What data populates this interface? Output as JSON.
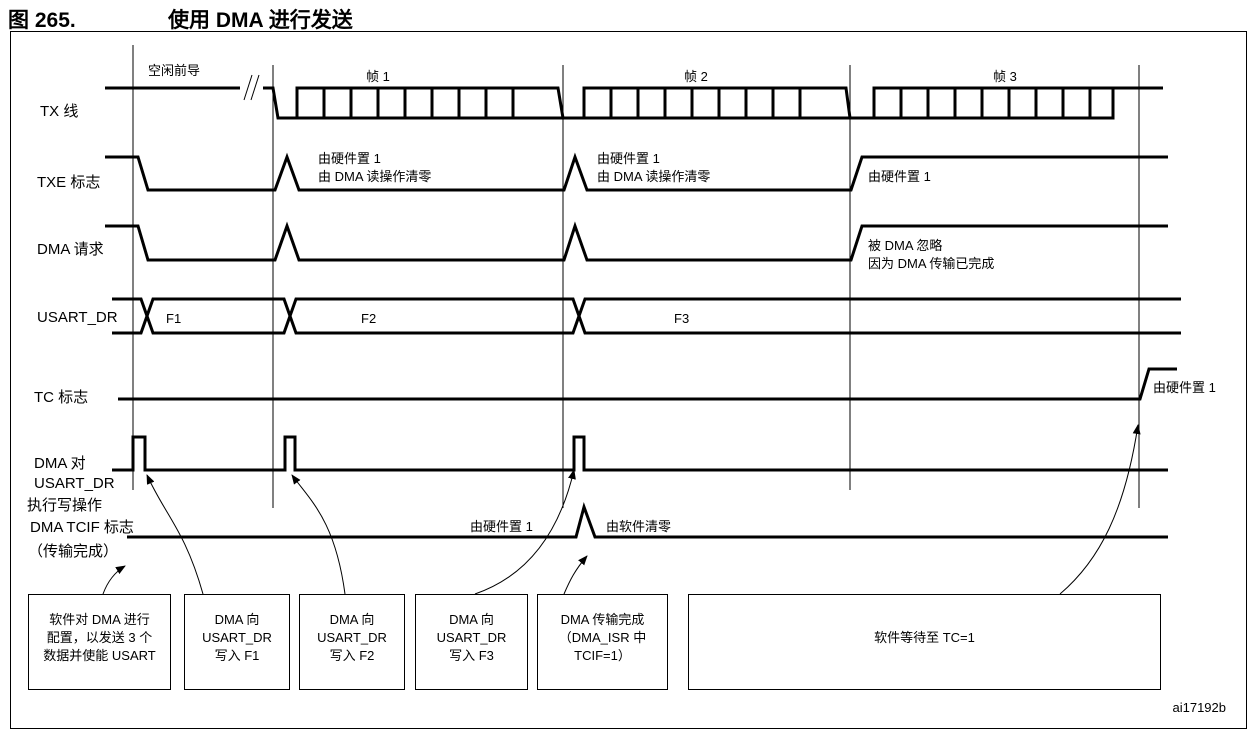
{
  "title": {
    "figure_number": "图 265.",
    "caption": "使用 DMA 进行发送"
  },
  "signals": {
    "tx": "TX 线",
    "txe": "TXE 标志",
    "dma_req": "DMA 请求",
    "usart_dr": "USART_DR",
    "tc": "TC 标志",
    "dma_write_1": "DMA 对",
    "dma_write_2": "USART_DR",
    "dma_write_3": "执行写操作",
    "tcif_1": "DMA TCIF 标志",
    "tcif_2": "（传输完成）"
  },
  "tx_annotations": {
    "idle_preamble": "空闲前导",
    "frame1": "帧 1",
    "frame2": "帧 2",
    "frame3": "帧 3"
  },
  "txe_annotations": {
    "set_hw_1a": "由硬件置 1",
    "clr_dma_1": "由 DMA 读操作清零",
    "set_hw_2a": "由硬件置 1",
    "clr_dma_2": "由 DMA 读操作清零",
    "set_hw_3": "由硬件置 1"
  },
  "dma_req_annotations": {
    "ignored": "被 DMA 忽略",
    "reason": "因为 DMA 传输已完成"
  },
  "usart_dr_values": {
    "f1": "F1",
    "f2": "F2",
    "f3": "F3"
  },
  "tc_annotation": "由硬件置 1",
  "tcif_annotations": {
    "set_hw": "由硬件置 1",
    "clr_sw": "由软件清零"
  },
  "boxes": {
    "b1": [
      "软件对 DMA 进行",
      "配置，以发送 3 个",
      "数据并使能 USART"
    ],
    "b2": [
      "DMA 向",
      "USART_DR",
      "写入 F1"
    ],
    "b3": [
      "DMA 向",
      "USART_DR",
      "写入 F2"
    ],
    "b4": [
      "DMA 向",
      "USART_DR",
      "写入 F3"
    ],
    "b5": [
      "DMA 传输完成",
      "（DMA_ISR 中",
      "TCIF=1）"
    ],
    "b6": [
      "软件等待至 TC=1"
    ]
  },
  "figure_id": "ai17192b"
}
